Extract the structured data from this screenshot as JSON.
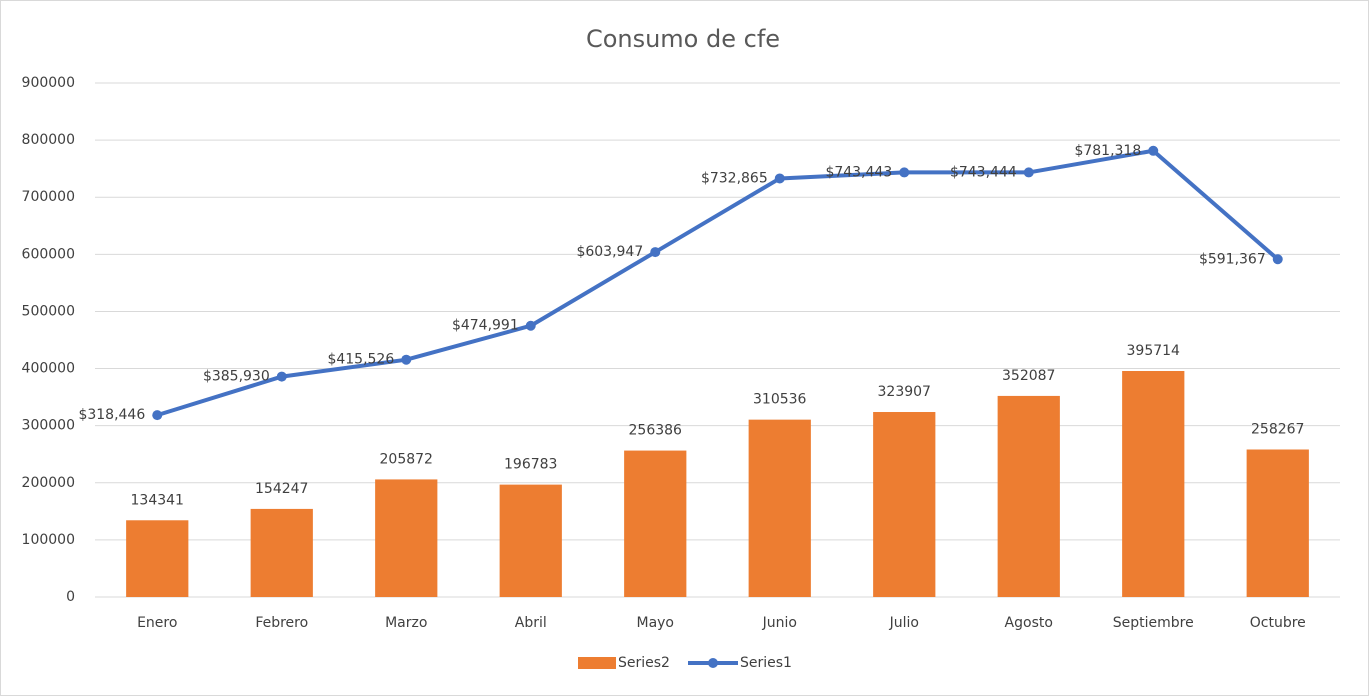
{
  "chart_data": {
    "type": "combo",
    "title": "Consumo de cfe",
    "categories": [
      "Enero",
      "Febrero",
      "Marzo",
      "Abril",
      "Mayo",
      "Junio",
      "Julio",
      "Agosto",
      "Septiembre",
      "Octubre"
    ],
    "series": [
      {
        "name": "Series2",
        "type": "bar",
        "color": "#ed7d31",
        "values": [
          134341,
          154247,
          205872,
          196783,
          256386,
          310536,
          323907,
          352087,
          395714,
          258267
        ]
      },
      {
        "name": "Series1",
        "type": "line",
        "color": "#4472c4",
        "values": [
          318446,
          385930,
          415526,
          474991,
          603947,
          732865,
          743443,
          743444,
          781318,
          591367
        ],
        "value_labels": [
          "$318,446",
          "$385,930",
          "$415,526",
          "$474,991",
          "$603,947",
          "$732,865",
          "$743,443",
          "$743,444",
          "$781,318",
          "$591,367"
        ]
      }
    ],
    "ylim": [
      0,
      900000
    ],
    "yticks": [
      0,
      100000,
      200000,
      300000,
      400000,
      500000,
      600000,
      700000,
      800000,
      900000
    ],
    "grid": true,
    "legend": "bottom"
  }
}
